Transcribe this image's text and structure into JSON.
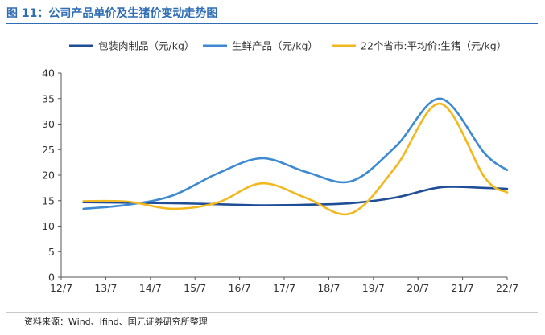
{
  "figure_title": "图 11：公司产品单价及生猪价变动走势图",
  "source": "资料来源：Wind、Ifind、国元证券研究所整理",
  "chart_data": {
    "type": "line",
    "title": "",
    "xlabel": "",
    "ylabel": "",
    "x_ticks": [
      "12/7",
      "13/7",
      "14/7",
      "15/7",
      "16/7",
      "17/7",
      "18/7",
      "19/7",
      "20/7",
      "21/7",
      "22/7"
    ],
    "xlim": [
      0,
      10
    ],
    "ylim": [
      0,
      40
    ],
    "y_ticks": [
      0,
      5,
      10,
      15,
      20,
      25,
      30,
      35,
      40
    ],
    "grid": false,
    "legend": "top",
    "series": [
      {
        "name": "包装肉制品（元/kg）",
        "color": "#1f4e96",
        "points": [
          [
            0.5,
            14.7
          ],
          [
            1.5,
            14.6
          ],
          [
            2.5,
            14.5
          ],
          [
            3.5,
            14.3
          ],
          [
            4.5,
            14.1
          ],
          [
            5.5,
            14.2
          ],
          [
            6.5,
            14.5
          ],
          [
            7.5,
            15.6
          ],
          [
            8.5,
            17.6
          ],
          [
            9.5,
            17.5
          ],
          [
            10.0,
            17.3
          ]
        ]
      },
      {
        "name": "生鲜产品（元/kg）",
        "color": "#3d8ad0",
        "points": [
          [
            0.5,
            13.4
          ],
          [
            1.5,
            14.2
          ],
          [
            2.5,
            16.0
          ],
          [
            3.5,
            20.3
          ],
          [
            4.5,
            23.3
          ],
          [
            5.5,
            20.6
          ],
          [
            6.5,
            18.8
          ],
          [
            7.5,
            25.6
          ],
          [
            8.5,
            35.0
          ],
          [
            9.5,
            24.2
          ],
          [
            10.0,
            21.0
          ]
        ]
      },
      {
        "name": "22个省市:平均价:生猪（元/kg）",
        "color": "#f2b81f",
        "points": [
          [
            0.5,
            14.9
          ],
          [
            1.5,
            14.8
          ],
          [
            2.5,
            13.4
          ],
          [
            3.5,
            14.6
          ],
          [
            4.5,
            18.4
          ],
          [
            5.5,
            15.5
          ],
          [
            6.5,
            12.5
          ],
          [
            7.5,
            21.6
          ],
          [
            8.5,
            34.0
          ],
          [
            9.5,
            19.5
          ],
          [
            10.0,
            16.6
          ]
        ]
      }
    ]
  }
}
